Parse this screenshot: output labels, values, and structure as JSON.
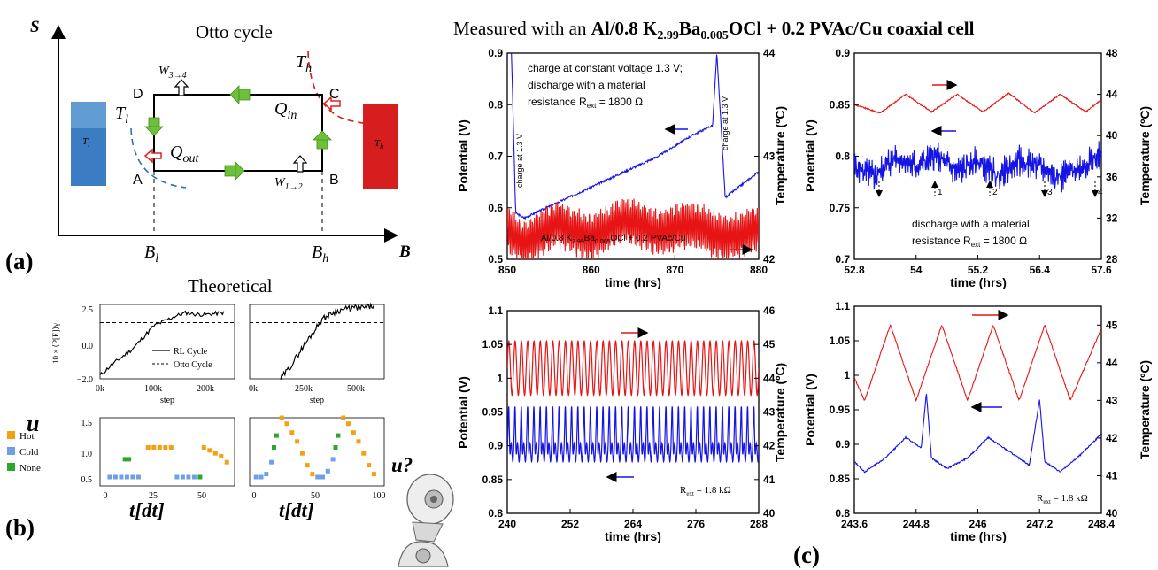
{
  "header": {
    "prefix": "Measured with an ",
    "cell": "Al/0.8 K2.99Ba0.005OCl + 0.2 PVAc/Cu coaxial cell",
    "cell_parts": [
      "Al/0.8 K",
      "2.99",
      "Ba",
      "0.005",
      "OCl + 0.2 PVAc/Cu coaxial cell"
    ]
  },
  "panel_labels": {
    "a": "(a)",
    "b": "(b)",
    "c": "(c)"
  },
  "otto": {
    "title": "Otto cycle",
    "s_axis": "S",
    "b_axis": "B",
    "Th": "T",
    "Th_sub": "h",
    "Tl": "T",
    "Tl_sub": "l",
    "Qin": "Q",
    "Qin_sub": "in",
    "Qout": "Q",
    "Qout_sub": "out",
    "W34": "W",
    "W34_sub": "3→4",
    "W12": "W",
    "W12_sub": "1→2",
    "corner_A": "A",
    "corner_B": "B",
    "corner_C": "C",
    "corner_D": "D",
    "Bl": "B",
    "Bl_sub": "l",
    "Bh": "B",
    "Bh_sub": "h",
    "res_cold": "T",
    "res_cold_sub": "l",
    "res_hot": "T",
    "res_hot_sub": "h",
    "colors": {
      "cold": "#2f6fb2",
      "hot": "#d91e18",
      "arrow": "#6cc03a"
    }
  },
  "theoretical": {
    "title": "Theoretical",
    "ylabel": "10 × ⟨P[E]⟩γ",
    "xlabel": "step",
    "u_label": "u",
    "t_label": "t[dt]",
    "robot_label": "u?",
    "legend_lines": [
      "RL Cycle",
      "Otto Cycle"
    ],
    "legend_states": [
      "Hot",
      "Cold",
      "None"
    ],
    "state_colors": {
      "Hot": "#f5a011",
      "Cold": "#6ea0e6",
      "None": "#2ca62c"
    }
  },
  "chart_data": [
    {
      "id": "power-left",
      "type": "line",
      "x_ticks": [
        "0k",
        "100k",
        "200k"
      ],
      "y_ticks": [
        "2.5",
        "0.0",
        "−2.0"
      ],
      "xlim": [
        0,
        250000
      ],
      "ylim": [
        -2.0,
        2.5
      ],
      "otto_level": 1.4,
      "series": [
        {
          "name": "RL Cycle",
          "style": "solid",
          "x": [
            0,
            20000,
            40000,
            60000,
            80000,
            100000,
            120000,
            140000,
            160000,
            180000,
            200000,
            230000
          ],
          "y": [
            -1.8,
            -1.2,
            -0.7,
            -0.2,
            0.5,
            1.2,
            1.5,
            1.8,
            2.0,
            1.9,
            1.9,
            2.0
          ]
        },
        {
          "name": "Otto Cycle",
          "style": "dashed",
          "x": [
            0,
            250000
          ],
          "y": [
            1.4,
            1.4
          ]
        }
      ]
    },
    {
      "id": "power-right",
      "type": "line",
      "x_ticks": [
        "0k",
        "250k",
        "500k"
      ],
      "xlim": [
        0,
        650000
      ],
      "ylim": [
        -2.0,
        2.5
      ],
      "series": [
        {
          "name": "RL Cycle",
          "style": "solid",
          "x": [
            150000,
            200000,
            250000,
            300000,
            350000,
            400000,
            450000,
            500000,
            550000,
            600000
          ],
          "y": [
            -2.0,
            -1.2,
            -0.2,
            0.7,
            1.6,
            2.0,
            2.2,
            2.3,
            2.3,
            2.4
          ]
        },
        {
          "name": "Otto Cycle",
          "style": "dashed",
          "x": [
            0,
            650000
          ],
          "y": [
            1.4,
            1.4
          ]
        }
      ]
    },
    {
      "id": "control-left",
      "type": "scatter",
      "x_ticks": [
        "0",
        "25",
        "50"
      ],
      "y_ticks": [
        "1.5",
        "1.0",
        "0.5"
      ],
      "xlim": [
        -5,
        65
      ],
      "ylim": [
        0.35,
        1.5
      ],
      "series": [
        {
          "name": "Cold",
          "x": [
            0,
            3,
            6,
            9,
            12,
            15,
            35,
            38,
            41,
            44
          ],
          "y": [
            0.5,
            0.5,
            0.5,
            0.5,
            0.5,
            0.5,
            0.5,
            0.5,
            0.5,
            0.5
          ]
        },
        {
          "name": "Hot",
          "x": [
            20,
            23,
            26,
            29,
            32,
            49,
            52,
            55,
            58,
            61
          ],
          "y": [
            1.0,
            1.0,
            1.0,
            1.0,
            1.0,
            1.0,
            0.95,
            0.9,
            0.85,
            0.75
          ]
        },
        {
          "name": "None",
          "x": [
            8,
            10,
            47
          ],
          "y": [
            0.8,
            0.8,
            0.5
          ]
        }
      ]
    },
    {
      "id": "control-right",
      "type": "scatter",
      "x_ticks": [
        "0",
        "50",
        "100"
      ],
      "xlim": [
        -5,
        100
      ],
      "ylim": [
        0.35,
        1.5
      ],
      "series": [
        {
          "name": "Cold",
          "x": [
            0,
            4,
            8,
            12,
            48,
            52,
            56,
            60
          ],
          "y": [
            0.5,
            0.5,
            0.55,
            0.75,
            0.5,
            0.5,
            0.6,
            0.8
          ]
        },
        {
          "name": "Hot",
          "x": [
            20,
            24,
            28,
            32,
            36,
            40,
            44,
            68,
            72,
            76,
            80,
            84,
            88,
            92
          ],
          "y": [
            1.5,
            1.4,
            1.25,
            1.1,
            0.9,
            0.7,
            0.55,
            1.5,
            1.4,
            1.25,
            1.1,
            0.9,
            0.7,
            0.55
          ]
        },
        {
          "name": "None",
          "x": [
            14,
            16,
            62,
            64
          ],
          "y": [
            1.0,
            1.2,
            1.0,
            1.2
          ]
        }
      ]
    },
    {
      "id": "measured-1",
      "type": "line",
      "xlabel": "time (hrs)",
      "ylabel": "Potential (V)",
      "y2label": "Temperature (ºC)",
      "x_ticks": [
        "850",
        "860",
        "870",
        "880"
      ],
      "xlim": [
        850,
        880
      ],
      "y_ticks": [
        "0.5",
        "0.6",
        "0.7",
        "0.8",
        "0.9"
      ],
      "ylim": [
        0.5,
        0.9
      ],
      "y2_ticks": [
        "42",
        "43",
        "44"
      ],
      "y2lim": [
        42,
        44
      ],
      "annotation_main": [
        "charge at constant voltage 1.3 V;",
        "discharge with a material",
        "resistance R",
        "ext",
        " = 1800 Ω"
      ],
      "annotation_charge": "charge at 1.3 V",
      "cell_label": [
        "Al/0.8 K",
        "2.99",
        "Ba",
        "0.005",
        "OCl + 0.2 PVAc/Cu"
      ],
      "series": [
        {
          "name": "Potential",
          "color": "#1414e6",
          "x": [
            850.5,
            851,
            852,
            856,
            860,
            864,
            868,
            872,
            874.5,
            875,
            876,
            880
          ],
          "y": [
            0.9,
            0.59,
            0.58,
            0.61,
            0.64,
            0.67,
            0.7,
            0.74,
            0.76,
            0.9,
            0.62,
            0.67
          ]
        },
        {
          "name": "Temperature",
          "color": "#e61414",
          "x": [
            850,
            852,
            856,
            860,
            864,
            868,
            872,
            876,
            880
          ],
          "y": [
            42.3,
            42.15,
            42.35,
            42.2,
            42.4,
            42.25,
            42.35,
            42.2,
            42.3
          ]
        }
      ]
    },
    {
      "id": "measured-2",
      "type": "line",
      "xlabel": "time (hrs)",
      "ylabel": "Potential (V)",
      "y2label": "Temperature (ºC)",
      "x_ticks": [
        "52.8",
        "54",
        "55.2",
        "56.4",
        "57.6"
      ],
      "xlim": [
        52.8,
        57.6
      ],
      "y_ticks": [
        "0.7",
        "0.75",
        "0.8",
        "0.85",
        "0.9"
      ],
      "ylim": [
        0.7,
        0.9
      ],
      "y2_ticks": [
        "28",
        "32",
        "36",
        "40",
        "44",
        "48"
      ],
      "y2lim": [
        28,
        48
      ],
      "annotation_main": [
        "discharge with a material",
        "resistance R",
        "ext",
        " = 1800 Ω"
      ],
      "markers": [
        "1",
        "2",
        "3",
        "4"
      ],
      "series": [
        {
          "name": "Potential",
          "color": "#1414e6",
          "x": [
            52.8,
            53.2,
            53.6,
            54.0,
            54.4,
            54.8,
            55.2,
            55.6,
            56.0,
            56.4,
            56.8,
            57.2,
            57.6
          ],
          "y": [
            0.79,
            0.78,
            0.8,
            0.79,
            0.8,
            0.785,
            0.795,
            0.78,
            0.795,
            0.79,
            0.78,
            0.79,
            0.8
          ]
        },
        {
          "name": "Temperature",
          "color": "#e61414",
          "x": [
            52.8,
            53.3,
            53.8,
            54.3,
            54.8,
            55.3,
            55.8,
            56.3,
            56.8,
            57.3,
            57.6
          ],
          "y": [
            43.0,
            42.2,
            44.0,
            42.3,
            44.0,
            42.3,
            44.1,
            42.2,
            44.0,
            42.3,
            43.5
          ]
        }
      ]
    },
    {
      "id": "measured-3",
      "type": "line",
      "xlabel": "time (hrs)",
      "ylabel": "Potential (V)",
      "y2label": "Temperature (ºC)",
      "x_ticks": [
        "240",
        "252",
        "264",
        "276",
        "288"
      ],
      "xlim": [
        240,
        288
      ],
      "y_ticks": [
        "0.8",
        "0.85",
        "0.9",
        "0.95",
        "1",
        "1.05",
        "1.1"
      ],
      "ylim": [
        0.8,
        1.1
      ],
      "y2_ticks": [
        "40",
        "41",
        "42",
        "43",
        "44",
        "45",
        "46"
      ],
      "y2lim": [
        40,
        46
      ],
      "annotation_main": [
        "R",
        "ext",
        " = 1.8 kΩ"
      ],
      "series": [
        {
          "name": "Potential",
          "color": "#1414e6",
          "period_hrs": 1.2,
          "min": 0.86,
          "max": 0.97
        },
        {
          "name": "Temperature",
          "color": "#e61414",
          "period_hrs": 1.2,
          "min": 43.5,
          "max": 45.1
        }
      ]
    },
    {
      "id": "measured-4",
      "type": "line",
      "xlabel": "time (hrs)",
      "ylabel": "Potential (V)",
      "y2label": "Temperature (ºC)",
      "x_ticks": [
        "243.6",
        "244.8",
        "246",
        "247.2",
        "248.4"
      ],
      "xlim": [
        243.6,
        248.4
      ],
      "y_ticks": [
        "0.8",
        "0.85",
        "0.9",
        "0.95",
        "1",
        "1.05",
        "1.1"
      ],
      "ylim": [
        0.8,
        1.1
      ],
      "y2_ticks": [
        "40",
        "41",
        "42",
        "43",
        "44",
        "45"
      ],
      "y2lim": [
        40,
        45.5
      ],
      "annotation_main": [
        "R",
        "ext",
        " = 1.8 kΩ"
      ],
      "series": [
        {
          "name": "Potential",
          "color": "#1414e6",
          "x": [
            243.6,
            243.8,
            244.2,
            244.6,
            244.9,
            245.0,
            245.1,
            245.4,
            245.8,
            246.2,
            246.6,
            247.0,
            247.2,
            247.3,
            247.6,
            248.0,
            248.4
          ],
          "y": [
            0.875,
            0.86,
            0.88,
            0.91,
            0.895,
            0.975,
            0.88,
            0.865,
            0.88,
            0.91,
            0.89,
            0.87,
            0.965,
            0.875,
            0.86,
            0.885,
            0.915
          ]
        },
        {
          "name": "Temperature",
          "color": "#e61414",
          "x": [
            243.6,
            243.8,
            244.3,
            244.8,
            245.3,
            245.8,
            246.3,
            246.8,
            247.3,
            247.8,
            248.4
          ],
          "y": [
            43.6,
            43.0,
            45.0,
            43.0,
            45.0,
            43.0,
            45.0,
            43.0,
            45.0,
            43.0,
            44.9
          ]
        }
      ]
    }
  ]
}
